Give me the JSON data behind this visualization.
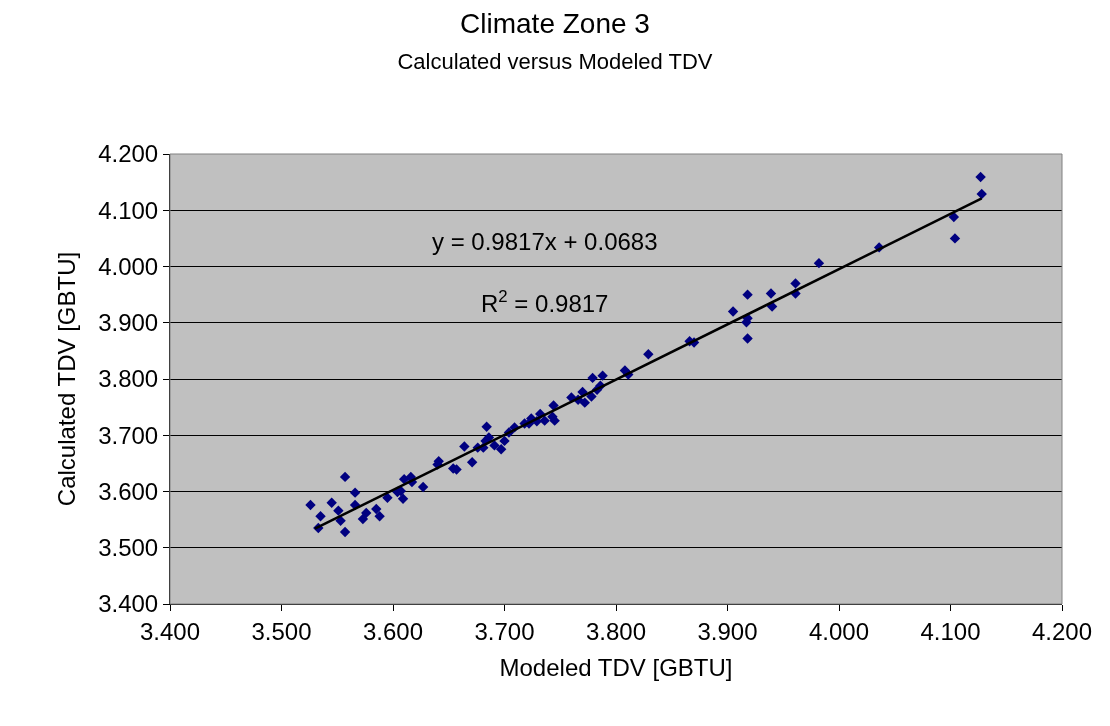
{
  "chart_data": {
    "type": "scatter",
    "title": "Climate Zone 3",
    "subtitle": "Calculated versus Modeled TDV",
    "xlabel": "Modeled TDV [GBTU]",
    "ylabel": "Calculated TDV [GBTU]",
    "x": [
      3.526,
      3.533,
      3.535,
      3.545,
      3.551,
      3.553,
      3.557,
      3.557,
      3.566,
      3.566,
      3.573,
      3.576,
      3.585,
      3.588,
      3.595,
      3.604,
      3.607,
      3.609,
      3.61,
      3.616,
      3.617,
      3.627,
      3.641,
      3.64,
      3.654,
      3.657,
      3.664,
      3.671,
      3.676,
      3.681,
      3.684,
      3.683,
      3.686,
      3.691,
      3.697,
      3.7,
      3.704,
      3.709,
      3.718,
      3.724,
      3.722,
      3.729,
      3.732,
      3.736,
      3.743,
      3.744,
      3.745,
      3.76,
      3.766,
      3.77,
      3.772,
      3.778,
      3.779,
      3.783,
      3.788,
      3.786,
      3.808,
      3.811,
      3.829,
      3.866,
      3.87,
      3.905,
      3.918,
      3.917,
      3.918,
      3.918,
      3.939,
      3.94,
      3.961,
      3.961,
      3.982,
      4.036,
      4.103,
      4.104,
      4.127,
      4.128
    ],
    "values": [
      3.576,
      3.535,
      3.556,
      3.58,
      3.566,
      3.548,
      3.626,
      3.528,
      3.598,
      3.576,
      3.551,
      3.562,
      3.569,
      3.556,
      3.589,
      3.599,
      3.601,
      3.587,
      3.622,
      3.626,
      3.617,
      3.608,
      3.654,
      3.648,
      3.641,
      3.639,
      3.68,
      3.652,
      3.678,
      3.678,
      3.715,
      3.69,
      3.696,
      3.682,
      3.675,
      3.69,
      3.705,
      3.714,
      3.721,
      3.73,
      3.721,
      3.725,
      3.738,
      3.726,
      3.733,
      3.753,
      3.726,
      3.767,
      3.763,
      3.777,
      3.758,
      3.769,
      3.802,
      3.781,
      3.806,
      3.788,
      3.815,
      3.808,
      3.844,
      3.867,
      3.865,
      3.92,
      3.95,
      3.901,
      3.908,
      3.872,
      3.952,
      3.929,
      3.97,
      3.952,
      4.006,
      4.034,
      4.088,
      4.05,
      4.159,
      4.129
    ],
    "color": "#000080",
    "marker": "diamond",
    "series": [
      {
        "type": "line",
        "marker": "none",
        "color": "#000000",
        "x": [
          3.53,
          4.128
        ],
        "values": [
          3.534,
          4.121
        ]
      }
    ],
    "annotations": [
      "y = 0.9817x + 0.0683",
      "R$^{2}$ = 0.9817"
    ],
    "xlim": [
      3.4,
      4.2
    ],
    "ylim": [
      3.4,
      4.2
    ],
    "xticks": [
      {
        "value": 3.4,
        "label": "3.400"
      },
      {
        "value": 3.5,
        "label": "3.500"
      },
      {
        "value": 3.6,
        "label": "3.600"
      },
      {
        "value": 3.7,
        "label": "3.700"
      },
      {
        "value": 3.8,
        "label": "3.800"
      },
      {
        "value": 3.9,
        "label": "3.900"
      },
      {
        "value": 4.0,
        "label": "4.000"
      },
      {
        "value": 4.1,
        "label": "4.100"
      },
      {
        "value": 4.2,
        "label": "4.200"
      }
    ],
    "yticks": [
      {
        "value": 3.4,
        "label": "3.400"
      },
      {
        "value": 3.5,
        "label": "3.500"
      },
      {
        "value": 3.6,
        "label": "3.600"
      },
      {
        "value": 3.7,
        "label": "3.700"
      },
      {
        "value": 3.8,
        "label": "3.800"
      },
      {
        "value": 3.9,
        "label": "3.900"
      },
      {
        "value": 4.0,
        "label": "4.000"
      },
      {
        "value": 4.1,
        "label": "4.100"
      },
      {
        "value": 4.2,
        "label": "4.200"
      }
    ],
    "grid": "y"
  }
}
